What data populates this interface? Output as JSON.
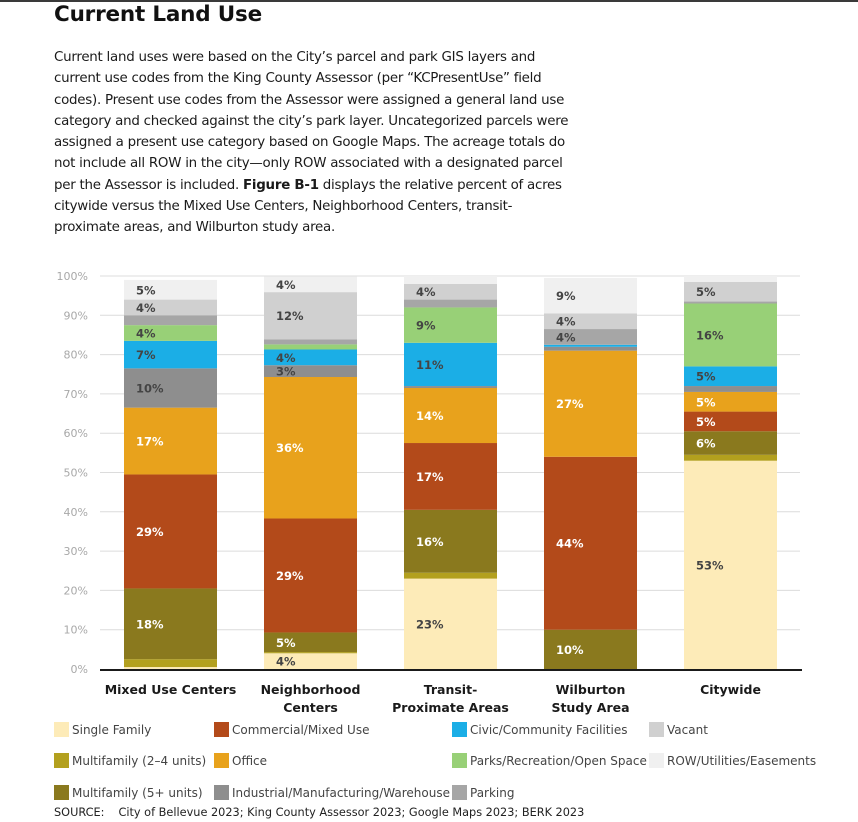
{
  "heading": "Current Land Use",
  "intro": {
    "before_bold": "Current land uses were based on the City’s parcel and park GIS layers and current use codes from the King County Assessor (per “KCPresentUse” field codes). Present use codes from the Assessor were assigned a general land use category and checked against the city’s park layer. Uncategorized parcels were assigned a present use category based on Google Maps. The acreage totals do not include all ROW in the city—only ROW associated with a designated parcel per the Assessor is included. ",
    "bold": "Figure B-1",
    "after_bold": " displays the relative percent of acres citywide versus the Mixed Use Centers, Neighborhood Centers, transit-proximate areas, and Wilburton study area."
  },
  "chart_data": {
    "type": "bar",
    "stacked": true,
    "title": "",
    "xlabel": "",
    "ylabel": "",
    "ylim": [
      0,
      100
    ],
    "yticks": [
      0,
      10,
      20,
      30,
      40,
      50,
      60,
      70,
      80,
      90,
      100
    ],
    "ytick_format": "{v}%",
    "grid": true,
    "legend_position": "bottom",
    "categories": [
      [
        "Mixed Use Centers"
      ],
      [
        "Neighborhood",
        "Centers"
      ],
      [
        "Transit-",
        "Proximate Areas"
      ],
      [
        "Wilburton",
        "Study Area"
      ],
      [
        "Citywide"
      ]
    ],
    "series": [
      {
        "name": "Single Family",
        "color": "#FDEBB8",
        "label_color": "#444444",
        "values": [
          0.5,
          4,
          23,
          0,
          53
        ],
        "labels": [
          "",
          "4%",
          "23%",
          "",
          "53%"
        ]
      },
      {
        "name": "Multifamily (2–4 units)",
        "color": "#B3A01E",
        "label_color": "#ffffff",
        "values": [
          2,
          0.3,
          1.5,
          0,
          1.5
        ],
        "labels": [
          "",
          "",
          "",
          "",
          ""
        ]
      },
      {
        "name": "Multifamily (5+ units)",
        "color": "#8A791E",
        "label_color": "#ffffff",
        "values": [
          18,
          5,
          16,
          10,
          6
        ],
        "labels": [
          "18%",
          "5%",
          "16%",
          "10%",
          "6%"
        ]
      },
      {
        "name": "Commercial/Mixed Use",
        "color": "#B34A1A",
        "label_color": "#ffffff",
        "values": [
          29,
          29,
          17,
          44,
          5
        ],
        "labels": [
          "29%",
          "29%",
          "17%",
          "44%",
          "5%"
        ]
      },
      {
        "name": "Office",
        "color": "#E8A21C",
        "label_color": "#ffffff",
        "values": [
          17,
          36,
          14,
          27,
          5
        ],
        "labels": [
          "17%",
          "36%",
          "14%",
          "27%",
          "5%"
        ]
      },
      {
        "name": "Industrial/Manufacturing/Warehouse",
        "color": "#8E8E8E",
        "label_color": "#444444",
        "values": [
          10,
          3,
          0.5,
          1,
          1.5
        ],
        "labels": [
          "10%",
          "3%",
          "",
          "",
          ""
        ]
      },
      {
        "name": "Civic/Community Facilities",
        "color": "#1BAEE6",
        "label_color": "#444444",
        "values": [
          7,
          4,
          11,
          0.5,
          5
        ],
        "labels": [
          "7%",
          "4%",
          "11%",
          "",
          "5%"
        ]
      },
      {
        "name": "Parks/Recreation/Open Space",
        "color": "#98D077",
        "label_color": "#444444",
        "values": [
          4,
          1.3,
          9,
          0,
          16
        ],
        "labels": [
          "4%",
          "",
          "9%",
          "",
          "16%"
        ]
      },
      {
        "name": "Parking",
        "color": "#A6A6A6",
        "label_color": "#444444",
        "values": [
          2.5,
          1.3,
          2,
          4,
          0.5
        ],
        "labels": [
          "",
          "",
          "",
          "4%",
          ""
        ]
      },
      {
        "name": "Vacant",
        "color": "#D0D0D0",
        "label_color": "#444444",
        "values": [
          4,
          12,
          4,
          4,
          5
        ],
        "labels": [
          "4%",
          "12%",
          "4%",
          "4%",
          "5%"
        ]
      },
      {
        "name": "ROW/Utilities/Easements",
        "color": "#F0F0F0",
        "label_color": "#444444",
        "values": [
          5,
          4,
          2,
          9,
          1.5
        ],
        "labels": [
          "5%",
          "4%",
          "",
          "9%",
          ""
        ]
      }
    ]
  },
  "legend": {
    "items": [
      {
        "name": "Single Family",
        "color": "#FDEBB8"
      },
      {
        "name": "Multifamily (2–4 units)",
        "color": "#B3A01E"
      },
      {
        "name": "Multifamily (5+ units)",
        "color": "#8A791E"
      },
      {
        "name": "Commercial/Mixed Use",
        "color": "#B34A1A"
      },
      {
        "name": "Office",
        "color": "#E8A21C"
      },
      {
        "name": "Industrial/Manufacturing/Warehouse",
        "color": "#8E8E8E"
      },
      {
        "name": "Civic/Community Facilities",
        "color": "#1BAEE6"
      },
      {
        "name": "Parks/Recreation/Open Space",
        "color": "#98D077"
      },
      {
        "name": "Parking",
        "color": "#A6A6A6"
      },
      {
        "name": "Vacant",
        "color": "#D0D0D0"
      },
      {
        "name": "ROW/Utilities/Easements",
        "color": "#F0F0F0"
      }
    ]
  },
  "source": {
    "tag": "SOURCE:",
    "text": "City of Bellevue 2023; King County Assessor 2023; Google Maps 2023; BERK 2023"
  }
}
